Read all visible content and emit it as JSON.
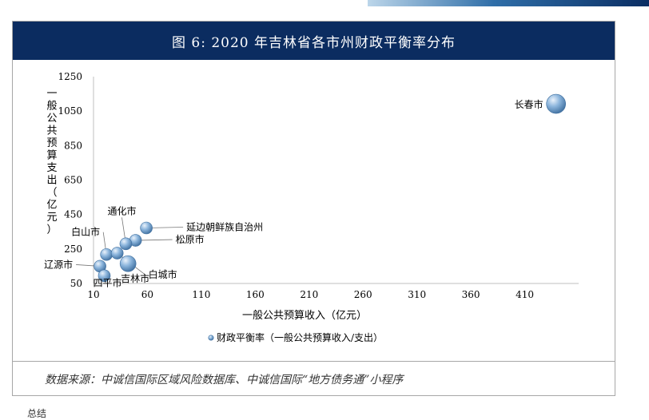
{
  "title": "图 6:   2020 年吉林省各市州财政平衡率分布",
  "source": "数据来源：中诚信国际区域风险数据库、中诚信国际“地方债务通”小程序",
  "footer_text": "总结",
  "colors": {
    "title_bg": "#0b2c60",
    "bubble": "#5f94c8",
    "bubble_light": "#cfe0f2",
    "leader": "#777777"
  },
  "chart_data": {
    "type": "bubble",
    "title": "",
    "xlabel": "一般公共预算收入（亿元）",
    "ylabel": "一般公共预算支出（亿元）",
    "xlim": [
      10,
      460
    ],
    "ylim": [
      50,
      1250
    ],
    "xticks": [
      10,
      60,
      110,
      160,
      210,
      260,
      310,
      360,
      410
    ],
    "yticks": [
      50,
      250,
      450,
      650,
      850,
      1050,
      1250
    ],
    "legend": {
      "label": "财政平衡率（一般公共预算收入/支出）",
      "position": "bottom"
    },
    "grid": false,
    "points": [
      {
        "name": "长春市",
        "x": 439,
        "y": 1092
      },
      {
        "name": "延边朝鲜族自治州",
        "x": 59,
        "y": 372
      },
      {
        "name": "松原市",
        "x": 49,
        "y": 300
      },
      {
        "name": "通化市",
        "x": 40,
        "y": 280
      },
      {
        "name": "白山市",
        "x": 22,
        "y": 218
      },
      {
        "name": "白城市",
        "x": 32,
        "y": 226
      },
      {
        "name": "吉林市",
        "x": 42,
        "y": 165
      },
      {
        "name": "辽源市",
        "x": 16,
        "y": 150
      },
      {
        "name": "四平市",
        "x": 20,
        "y": 95
      }
    ]
  }
}
